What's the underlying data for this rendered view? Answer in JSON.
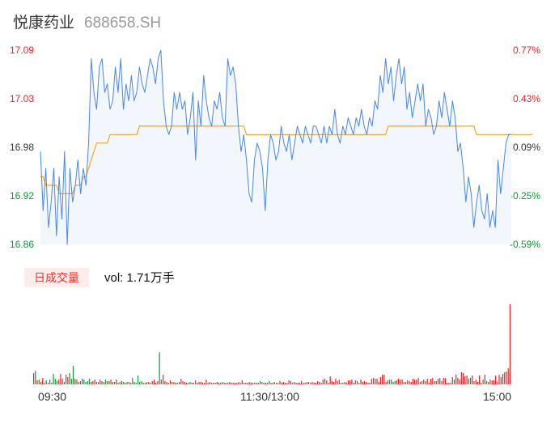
{
  "header": {
    "name": "悦康药业",
    "code": "688658.SH"
  },
  "colors": {
    "up": "#e8272c",
    "down": "#0c9a3c",
    "price_line": "#4a86e8",
    "avg_line": "#f5a623",
    "area_fill": "#f2f6fd"
  },
  "chart_data": [
    {
      "type": "line",
      "ylim": [
        16.86,
        17.09
      ],
      "y_ticks": [
        "17.09",
        "17.03",
        "16.98",
        "16.92",
        "16.86"
      ],
      "right_ticks": [
        "0.77%",
        "0.43%",
        "0.09%",
        "-0.25%",
        "-0.59%"
      ],
      "x_ticks": [
        "09:30",
        "11:30/13:00",
        "15:00"
      ],
      "series": [
        {
          "values": [
            16.97,
            16.9,
            16.95,
            16.88,
            16.91,
            16.95,
            16.87,
            16.94,
            16.89,
            16.97,
            16.86,
            16.95,
            16.91,
            16.93,
            16.96,
            16.92,
            16.95,
            16.93,
            16.98,
            17.08,
            17.04,
            17.02,
            17.07,
            17.08,
            17.04,
            17.05,
            17.02,
            17.03,
            17.07,
            17.04,
            17.08,
            17.02,
            17.05,
            17.03,
            17.06,
            17.03,
            17.04,
            17.07,
            17.05,
            17.04,
            17.06,
            17.08,
            17.07,
            17.05,
            17.08,
            17.09,
            17.03,
            17.0,
            16.99,
            17.0,
            17.04,
            17.02,
            17.04,
            17.02,
            17.03,
            16.99,
            17.01,
            17.04,
            16.96,
            17.03,
            17.0,
            17.06,
            17.03,
            17.01,
            17.0,
            17.03,
            17.02,
            17.04,
            17.01,
            17.0,
            17.08,
            17.06,
            17.07,
            17.05,
            17.0,
            16.97,
            16.99,
            16.96,
            16.92,
            16.91,
            16.96,
            16.98,
            16.97,
            16.95,
            16.9,
            16.96,
            16.99,
            16.98,
            16.96,
            16.97,
            17.0,
            16.98,
            16.97,
            16.99,
            16.96,
            16.98,
            17.0,
            16.99,
            16.98,
            17.0,
            16.99,
            16.98,
            17.0,
            17.0,
            16.99,
            16.98,
            17.0,
            16.98,
            17.0,
            16.99,
            17.02,
            16.99,
            16.98,
            17.0,
            16.99,
            17.01,
            17.0,
            16.99,
            17.01,
            17.0,
            17.02,
            17.0,
            16.99,
            17.01,
            17.0,
            17.03,
            17.02,
            17.06,
            17.04,
            17.08,
            17.05,
            17.07,
            17.03,
            17.06,
            17.08,
            17.05,
            17.07,
            17.02,
            17.04,
            17.01,
            17.03,
            17.05,
            17.03,
            17.05,
            17.0,
            17.02,
            17.01,
            16.99,
            17.0,
            17.03,
            17.01,
            17.04,
            17.02,
            17.0,
            17.03,
            17.01,
            16.97,
            16.98,
            16.95,
            16.91,
            16.94,
            16.92,
            16.88,
            16.91,
            16.93,
            16.9,
            16.89,
            16.92,
            16.88,
            16.9,
            16.88,
            16.96,
            16.92,
            16.95,
            16.98,
            16.99,
            16.99
          ],
          "color": "#4a86e8"
        },
        {
          "values": [
            16.94,
            16.94,
            16.93,
            16.93,
            16.93,
            16.93,
            16.93,
            16.92,
            16.92,
            16.92,
            16.92,
            16.92,
            16.92,
            16.93,
            16.93,
            16.93,
            16.94,
            16.94,
            16.95,
            16.96,
            16.97,
            16.98,
            16.98,
            16.98,
            16.98,
            16.98,
            16.99,
            16.99,
            16.99,
            16.99,
            16.99,
            16.99,
            16.99,
            16.99,
            16.99,
            16.99,
            16.99,
            17.0,
            17.0,
            17.0,
            17.0,
            17.0,
            17.0,
            17.0,
            17.0,
            17.0,
            17.0,
            17.0,
            17.0,
            17.0,
            17.0,
            17.0,
            17.0,
            17.0,
            17.0,
            17.0,
            17.0,
            17.0,
            17.0,
            17.0,
            17.0,
            17.0,
            17.0,
            17.0,
            17.0,
            17.0,
            17.0,
            17.0,
            17.0,
            17.0,
            17.0,
            17.0,
            17.0,
            17.0,
            17.0,
            17.0,
            17.0,
            16.99,
            16.99,
            16.99,
            16.99,
            16.99,
            16.99,
            16.99,
            16.99,
            16.99,
            16.99,
            16.99,
            16.99,
            16.99,
            16.99,
            16.99,
            16.99,
            16.99,
            16.99,
            16.99,
            16.99,
            16.99,
            16.99,
            16.99,
            16.99,
            16.99,
            16.99,
            16.99,
            16.99,
            16.99,
            16.99,
            16.99,
            16.99,
            16.99,
            16.99,
            16.99,
            16.99,
            16.99,
            16.99,
            16.99,
            16.99,
            16.99,
            16.99,
            16.99,
            16.99,
            16.99,
            16.99,
            16.99,
            16.99,
            16.99,
            16.99,
            16.99,
            16.99,
            16.99,
            17.0,
            17.0,
            17.0,
            17.0,
            17.0,
            17.0,
            17.0,
            17.0,
            17.0,
            17.0,
            17.0,
            17.0,
            17.0,
            17.0,
            17.0,
            17.0,
            17.0,
            17.0,
            17.0,
            17.0,
            17.0,
            17.0,
            17.0,
            17.0,
            17.0,
            17.0,
            17.0,
            17.0,
            17.0,
            17.0,
            17.0,
            17.0,
            17.0,
            16.99,
            16.99,
            16.99,
            16.99,
            16.99,
            16.99,
            16.99,
            16.99,
            16.99,
            16.99,
            16.99,
            16.99,
            16.99,
            16.99,
            16.99,
            16.99,
            16.99,
            16.99,
            16.99,
            16.99,
            16.99,
            16.99
          ],
          "color": "#f5a623"
        }
      ]
    },
    {
      "type": "bar",
      "title": "日成交量",
      "annotation": "vol: 1.71万手",
      "values": [
        14,
        17,
        5,
        6,
        3,
        8,
        2,
        5,
        2,
        6,
        2,
        13,
        7,
        4,
        6,
        13,
        7,
        3,
        12,
        9,
        14,
        7,
        23,
        7,
        6,
        3,
        4,
        7,
        6,
        3,
        4,
        7,
        3,
        4,
        6,
        3,
        3,
        6,
        4,
        3,
        6,
        4,
        4,
        6,
        3,
        3,
        6,
        2,
        3,
        4,
        3,
        2,
        3,
        3,
        2,
        8,
        3,
        2,
        11,
        3,
        4,
        2,
        2,
        3,
        3,
        2,
        4,
        6,
        2,
        4,
        40,
        6,
        12,
        4,
        3,
        2,
        5,
        3,
        3,
        2,
        2,
        3,
        7,
        4,
        3,
        2,
        2,
        3,
        2,
        2,
        5,
        2,
        3,
        3,
        2,
        2,
        6,
        2,
        3,
        2,
        2,
        2,
        3,
        2,
        2,
        3,
        2,
        2,
        2,
        3,
        2,
        2,
        2,
        2,
        3,
        2,
        5,
        2,
        2,
        2,
        3,
        2,
        2,
        2,
        2,
        2,
        4,
        3,
        2,
        2,
        2,
        4,
        2,
        2,
        3,
        2,
        2,
        4,
        2,
        3,
        2,
        2,
        5,
        4,
        2,
        3,
        2,
        2,
        2,
        4,
        2,
        2,
        3,
        3,
        2,
        3,
        2,
        2,
        4,
        3,
        2,
        6,
        7,
        5,
        2,
        10,
        4,
        3,
        7,
        4,
        6,
        2,
        2,
        3,
        2,
        5,
        5,
        6,
        2,
        5,
        4,
        2,
        6,
        3,
        4,
        3,
        2,
        2,
        7,
        8,
        7,
        7,
        3,
        9,
        12,
        12,
        3,
        5,
        6,
        6,
        3,
        4,
        5,
        7,
        6,
        6,
        3,
        3,
        5,
        4,
        3,
        7,
        6,
        6,
        8,
        3,
        4,
        6,
        4,
        7,
        2,
        7,
        8,
        4,
        4,
        7,
        8,
        4,
        8,
        8,
        2,
        2,
        2,
        9,
        6,
        12,
        8,
        6,
        15,
        14,
        10,
        11,
        7,
        8,
        11,
        4,
        6,
        3,
        11,
        2,
        6,
        12,
        4,
        3,
        6,
        5,
        5,
        11,
        3,
        12,
        9,
        13,
        15,
        16,
        20,
        100
      ],
      "colors": [
        "up",
        "down",
        "up",
        "down",
        "up",
        "up",
        "up",
        "down",
        "up",
        "down",
        "up",
        "down",
        "down",
        "down",
        "up",
        "up",
        "up",
        "down",
        "up",
        "up",
        "down",
        "down",
        "down",
        "up",
        "down",
        "up",
        "up",
        "down",
        "down",
        "down",
        "down",
        "down",
        "up",
        "up",
        "up",
        "up",
        "up",
        "up",
        "up",
        "down",
        "down",
        "up",
        "down",
        "up",
        "up",
        "up",
        "up",
        "down",
        "down",
        "up",
        "down",
        "down",
        "up",
        "down",
        "up",
        "down",
        "down",
        "up",
        "down",
        "down",
        "down",
        "up",
        "up",
        "up",
        "up",
        "down",
        "up",
        "up",
        "up",
        "up",
        "down",
        "up",
        "up",
        "up",
        "up",
        "down",
        "up",
        "down",
        "up",
        "up",
        "up",
        "down",
        "up",
        "up",
        "up",
        "up",
        "down",
        "down",
        "up",
        "up",
        "up",
        "up",
        "up",
        "up",
        "up",
        "up",
        "up",
        "up",
        "up",
        "up",
        "up",
        "down",
        "up",
        "up",
        "up",
        "down",
        "up",
        "up",
        "up",
        "up",
        "up",
        "up",
        "up",
        "up",
        "up",
        "up",
        "up",
        "up",
        "up",
        "up",
        "up",
        "up",
        "up",
        "down",
        "up",
        "up",
        "down",
        "down",
        "up",
        "up",
        "up",
        "down",
        "up",
        "up",
        "down",
        "up",
        "up",
        "up",
        "up",
        "up",
        "up",
        "up",
        "up",
        "up",
        "up",
        "up",
        "up",
        "up",
        "up",
        "up",
        "up",
        "up",
        "up",
        "up",
        "up",
        "up",
        "up",
        "up",
        "up",
        "up",
        "up",
        "up",
        "up",
        "up",
        "up",
        "up",
        "up",
        "up",
        "up",
        "up",
        "up",
        "up",
        "up",
        "up",
        "up",
        "up",
        "up",
        "up",
        "up",
        "up",
        "down",
        "up",
        "up",
        "up",
        "up",
        "up",
        "up",
        "up",
        "up",
        "up",
        "up",
        "up",
        "up",
        "up",
        "up",
        "up",
        "up",
        "up",
        "down",
        "down",
        "down",
        "down",
        "up",
        "up",
        "up",
        "up",
        "up",
        "up",
        "up",
        "up",
        "up",
        "up",
        "up",
        "up",
        "up",
        "up",
        "up",
        "up",
        "up",
        "up",
        "up",
        "up",
        "up",
        "up",
        "up",
        "up",
        "up",
        "up",
        "up",
        "up",
        "up",
        "up",
        "up",
        "up",
        "up",
        "up",
        "up",
        "up",
        "up",
        "up",
        "up",
        "up",
        "down",
        "up",
        "up",
        "up",
        "up",
        "up",
        "up",
        "up",
        "down",
        "up",
        "up",
        "up",
        "up",
        "up",
        "up",
        "up",
        "up",
        "up",
        "up",
        "up",
        "up",
        "up",
        "up",
        "up",
        "up",
        "up",
        "up",
        "up",
        "up",
        "up",
        "up",
        "up",
        "up"
      ]
    }
  ]
}
